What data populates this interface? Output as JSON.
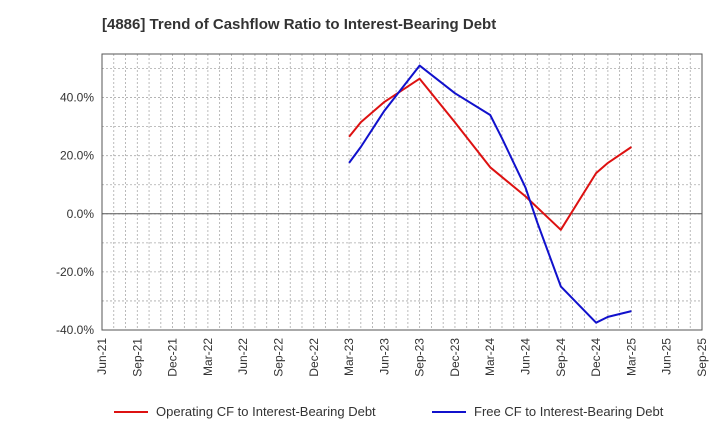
{
  "chart_data": {
    "type": "line",
    "title": "[4886]  Trend of Cashflow Ratio to Interest-Bearing Debt",
    "xlabel": "",
    "ylabel": "",
    "categories": [
      "Jun-21",
      "Sep-21",
      "Dec-21",
      "Mar-22",
      "Jun-22",
      "Sep-22",
      "Dec-22",
      "Mar-23",
      "Jun-23",
      "Sep-23",
      "Dec-23",
      "Mar-24",
      "Jun-24",
      "Sep-24",
      "Dec-24",
      "Mar-25",
      "Jun-25",
      "Sep-25"
    ],
    "ylim": [
      -40,
      55
    ],
    "yticks": [
      -40,
      -20,
      0,
      20,
      40
    ],
    "ytick_labels": [
      "-40.0%",
      "-20.0%",
      "0.0%",
      "20.0%",
      "40.0%"
    ],
    "grid": true,
    "legend_position": "bottom",
    "series": [
      {
        "name": "Operating CF to Interest-Bearing Debt",
        "color": "#dd1111",
        "points": [
          {
            "x": "Mar-23",
            "y": 26.5
          },
          {
            "x": "Apr-23",
            "y": 31.5
          },
          {
            "x": "Jun-23",
            "y": 38.5
          },
          {
            "x": "Sep-23",
            "y": 46.5
          },
          {
            "x": "Dec-23",
            "y": 31.5
          },
          {
            "x": "Mar-24",
            "y": 16.0
          },
          {
            "x": "Jun-24",
            "y": 6.0
          },
          {
            "x": "Sep-24",
            "y": -5.5
          },
          {
            "x": "Dec-24",
            "y": 14.0
          },
          {
            "x": "Jan-25",
            "y": 17.5
          },
          {
            "x": "Mar-25",
            "y": 23.0
          }
        ]
      },
      {
        "name": "Free CF to Interest-Bearing Debt",
        "color": "#1111cc",
        "points": [
          {
            "x": "Mar-23",
            "y": 17.5
          },
          {
            "x": "Apr-23",
            "y": 23.0
          },
          {
            "x": "Jun-23",
            "y": 35.5
          },
          {
            "x": "Sep-23",
            "y": 51.0
          },
          {
            "x": "Dec-23",
            "y": 41.5
          },
          {
            "x": "Mar-24",
            "y": 34.0
          },
          {
            "x": "Apr-24",
            "y": 26.0
          },
          {
            "x": "Jun-24",
            "y": 9.0
          },
          {
            "x": "Jul-24",
            "y": -3.0
          },
          {
            "x": "Sep-24",
            "y": -25.0
          },
          {
            "x": "Dec-24",
            "y": -37.5
          },
          {
            "x": "Jan-25",
            "y": -35.5
          },
          {
            "x": "Mar-25",
            "y": -33.5
          }
        ]
      }
    ]
  }
}
